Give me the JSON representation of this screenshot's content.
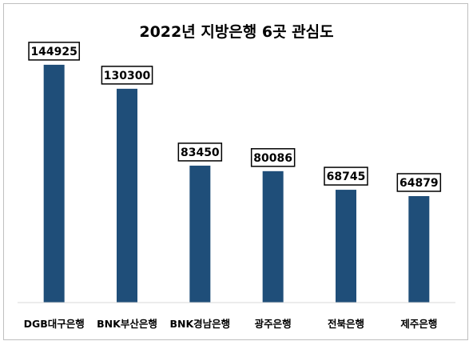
{
  "chart_data": {
    "type": "bar",
    "title": "2022년 지방은행 6곳 관심도",
    "categories": [
      "DGB대구은행",
      "BNK부산은행",
      "BNK경남은행",
      "광주은행",
      "전북은행",
      "제주은행"
    ],
    "values": [
      144925,
      130300,
      83450,
      80086,
      68745,
      64879
    ],
    "xlabel": "",
    "ylabel": "",
    "ylim": [
      0,
      160000
    ],
    "grid": false,
    "legend": "none",
    "bar_color": "#1f4e79",
    "data_labels": true
  }
}
